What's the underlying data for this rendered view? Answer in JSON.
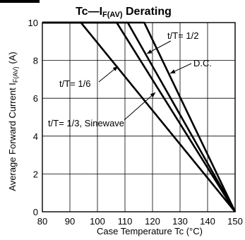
{
  "chart_data": {
    "type": "line",
    "title": "Tc—I",
    "title_sub": "F(AV)",
    "title_suffix": " Derating",
    "xlabel": "Case Temperature   Tc (°C)",
    "ylabel": "Average Forward Current   I",
    "ylabel_sub": "F(AV)",
    "ylabel_unit": " (A)",
    "xlim": [
      80,
      150
    ],
    "ylim": [
      0,
      10
    ],
    "xticks": [
      80,
      90,
      100,
      110,
      120,
      130,
      140,
      150
    ],
    "yticks": [
      0,
      2,
      4,
      6,
      8,
      10
    ],
    "grid": true,
    "series": [
      {
        "name": "t/T= 1/6",
        "x": [
          80,
          94,
          150
        ],
        "y": [
          10,
          10,
          0
        ]
      },
      {
        "name": "t/T= 1/3,  Sinewave",
        "x": [
          80,
          107,
          150
        ],
        "y": [
          10,
          10,
          0
        ]
      },
      {
        "name": "D.C.",
        "x": [
          80,
          117,
          150
        ],
        "y": [
          10,
          10,
          0
        ]
      },
      {
        "name": "t/T= 1/2",
        "x": [
          80,
          111,
          150
        ],
        "y": [
          10,
          10,
          0
        ]
      }
    ],
    "annotations": [
      {
        "text": "t/T= 1/2",
        "series": 3
      },
      {
        "text": "D.C.",
        "series": 2
      },
      {
        "text": "t/T= 1/6",
        "series": 0
      },
      {
        "text": "t/T= 1/3,  Sinewave",
        "series": 1
      }
    ],
    "line_color": "#000000",
    "grid_color": "#000000"
  }
}
